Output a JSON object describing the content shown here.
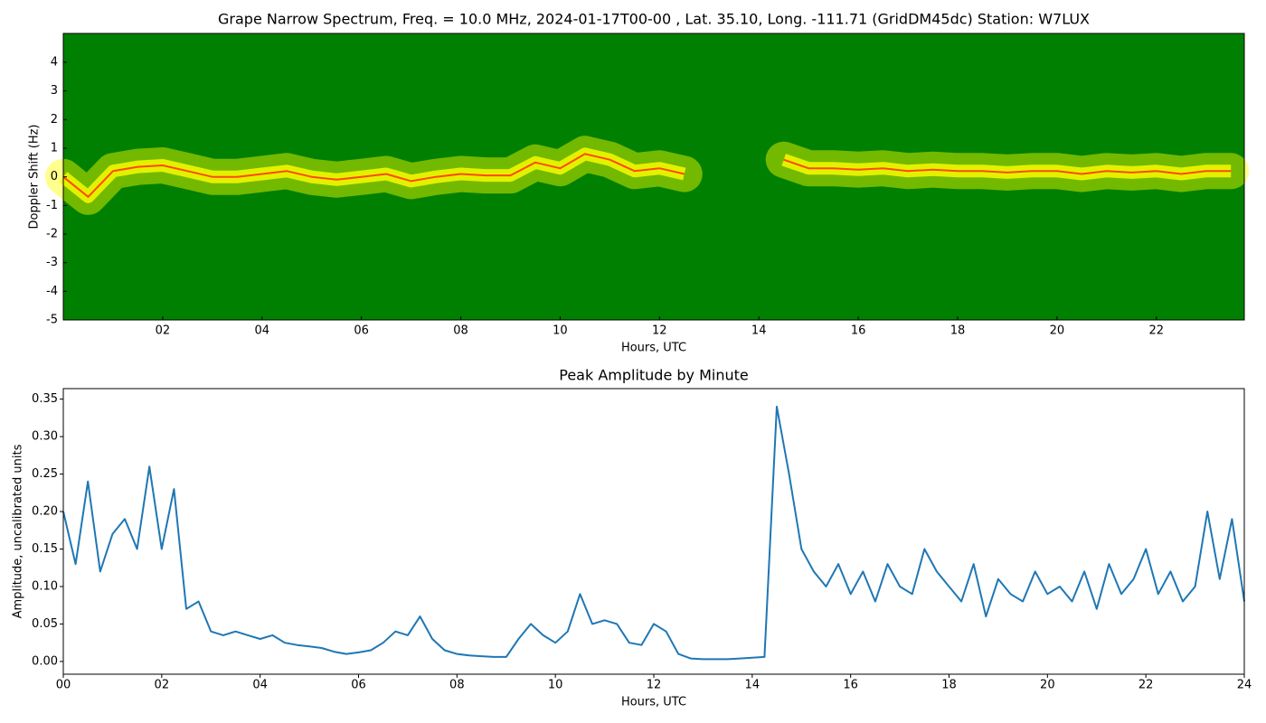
{
  "chart_data": [
    {
      "type": "spectrogram",
      "title": "Grape Narrow Spectrum, Freq. = 10.0 MHz, 2024-01-17T00-00 , Lat.  35.10, Long. -111.71 (GridDM45dc) Station: W7LUX",
      "xlabel": "Hours, UTC",
      "ylabel": "Doppler Shift (Hz)",
      "background": "#008000",
      "color": "#ffff00",
      "trace_color": "#ff4a00",
      "x": [
        0,
        0.5,
        1,
        1.5,
        2,
        2.5,
        3,
        3.5,
        4,
        4.5,
        5,
        5.5,
        6,
        6.5,
        7,
        7.5,
        8,
        8.5,
        9,
        9.5,
        10,
        10.5,
        11,
        11.5,
        12,
        12.5,
        13,
        13.5,
        14,
        14.5,
        15,
        15.5,
        16,
        16.5,
        17,
        17.5,
        18,
        18.5,
        19,
        19.5,
        20,
        20.5,
        21,
        21.5,
        22,
        22.5,
        23,
        23.5
      ],
      "values": [
        0,
        -0.7,
        0.2,
        0.35,
        0.4,
        0.2,
        0,
        0,
        0.1,
        0.2,
        0,
        -0.1,
        0,
        0.1,
        -0.15,
        0,
        0.1,
        0.05,
        0.05,
        0.5,
        0.3,
        0.8,
        0.6,
        0.2,
        0.3,
        0.1,
        null,
        null,
        null,
        0.6,
        0.3,
        0.3,
        0.25,
        0.3,
        0.2,
        0.25,
        0.2,
        0.2,
        0.15,
        0.2,
        0.2,
        0.1,
        0.2,
        0.15,
        0.2,
        0.1,
        0.2,
        0.2
      ],
      "xlim": [
        0,
        23.77
      ],
      "ylim": [
        -5,
        5.01
      ],
      "xticks": [
        {
          "value": 2,
          "label": "02"
        },
        {
          "value": 4,
          "label": "04"
        },
        {
          "value": 6,
          "label": "06"
        },
        {
          "value": 8,
          "label": "08"
        },
        {
          "value": 10,
          "label": "10"
        },
        {
          "value": 12,
          "label": "12"
        },
        {
          "value": 14,
          "label": "14"
        },
        {
          "value": 16,
          "label": "16"
        },
        {
          "value": 18,
          "label": "18"
        },
        {
          "value": 20,
          "label": "20"
        },
        {
          "value": 22,
          "label": "22"
        }
      ],
      "yticks": [
        -5,
        -4,
        -3,
        -2,
        -1,
        0,
        1,
        2,
        3,
        4
      ]
    },
    {
      "type": "line",
      "title": "Peak Amplitude by Minute",
      "xlabel": "Hours, UTC",
      "ylabel": "Amplitude, uncalibrated units",
      "color": "#1f77b4",
      "x": [
        0,
        0.25,
        0.5,
        0.75,
        1,
        1.25,
        1.5,
        1.75,
        2,
        2.25,
        2.5,
        2.75,
        3,
        3.25,
        3.5,
        3.75,
        4,
        4.25,
        4.5,
        4.75,
        5,
        5.25,
        5.5,
        5.75,
        6,
        6.25,
        6.5,
        6.75,
        7,
        7.25,
        7.5,
        7.75,
        8,
        8.25,
        8.5,
        8.75,
        9,
        9.25,
        9.5,
        9.75,
        10,
        10.25,
        10.5,
        10.75,
        11,
        11.25,
        11.5,
        11.75,
        12,
        12.25,
        12.5,
        12.75,
        13,
        13.25,
        13.5,
        13.75,
        14,
        14.25,
        14.5,
        14.75,
        15,
        15.25,
        15.5,
        15.75,
        16,
        16.25,
        16.5,
        16.75,
        17,
        17.25,
        17.5,
        17.75,
        18,
        18.25,
        18.5,
        18.75,
        19,
        19.25,
        19.5,
        19.75,
        20,
        20.25,
        20.5,
        20.75,
        21,
        21.25,
        21.5,
        21.75,
        22,
        22.25,
        22.5,
        22.75,
        23,
        23.25,
        23.5,
        23.75,
        24
      ],
      "values": [
        0.2,
        0.13,
        0.24,
        0.12,
        0.17,
        0.19,
        0.15,
        0.26,
        0.15,
        0.23,
        0.07,
        0.08,
        0.04,
        0.035,
        0.04,
        0.035,
        0.03,
        0.035,
        0.025,
        0.022,
        0.02,
        0.018,
        0.013,
        0.01,
        0.012,
        0.015,
        0.025,
        0.04,
        0.035,
        0.06,
        0.03,
        0.015,
        0.01,
        0.008,
        0.007,
        0.006,
        0.006,
        0.03,
        0.05,
        0.035,
        0.025,
        0.04,
        0.09,
        0.05,
        0.055,
        0.05,
        0.025,
        0.022,
        0.05,
        0.04,
        0.01,
        0.004,
        0.003,
        0.003,
        0.003,
        0.004,
        0.005,
        0.006,
        0.34,
        0.25,
        0.15,
        0.12,
        0.1,
        0.13,
        0.09,
        0.12,
        0.08,
        0.13,
        0.1,
        0.09,
        0.15,
        0.12,
        0.1,
        0.08,
        0.13,
        0.06,
        0.11,
        0.09,
        0.08,
        0.12,
        0.09,
        0.1,
        0.08,
        0.12,
        0.07,
        0.13,
        0.09,
        0.11,
        0.15,
        0.09,
        0.12,
        0.08,
        0.1,
        0.2,
        0.11,
        0.19,
        0.08
      ],
      "xlim": [
        0,
        24
      ],
      "ylim": [
        -0.017,
        0.364
      ],
      "xticks": [
        {
          "value": 0,
          "label": "00"
        },
        {
          "value": 2,
          "label": "02"
        },
        {
          "value": 4,
          "label": "04"
        },
        {
          "value": 6,
          "label": "06"
        },
        {
          "value": 8,
          "label": "08"
        },
        {
          "value": 10,
          "label": "10"
        },
        {
          "value": 12,
          "label": "12"
        },
        {
          "value": 14,
          "label": "14"
        },
        {
          "value": 16,
          "label": "16"
        },
        {
          "value": 18,
          "label": "18"
        },
        {
          "value": 20,
          "label": "20"
        },
        {
          "value": 22,
          "label": "22"
        },
        {
          "value": 24,
          "label": "24"
        }
      ],
      "yticks": [
        {
          "value": 0,
          "label": "0.00"
        },
        0.05,
        {
          "value": 0.1,
          "label": "0.10"
        },
        0.15,
        {
          "value": 0.2,
          "label": "0.20"
        },
        0.25,
        {
          "value": 0.3,
          "label": "0.30"
        },
        0.35
      ]
    }
  ]
}
